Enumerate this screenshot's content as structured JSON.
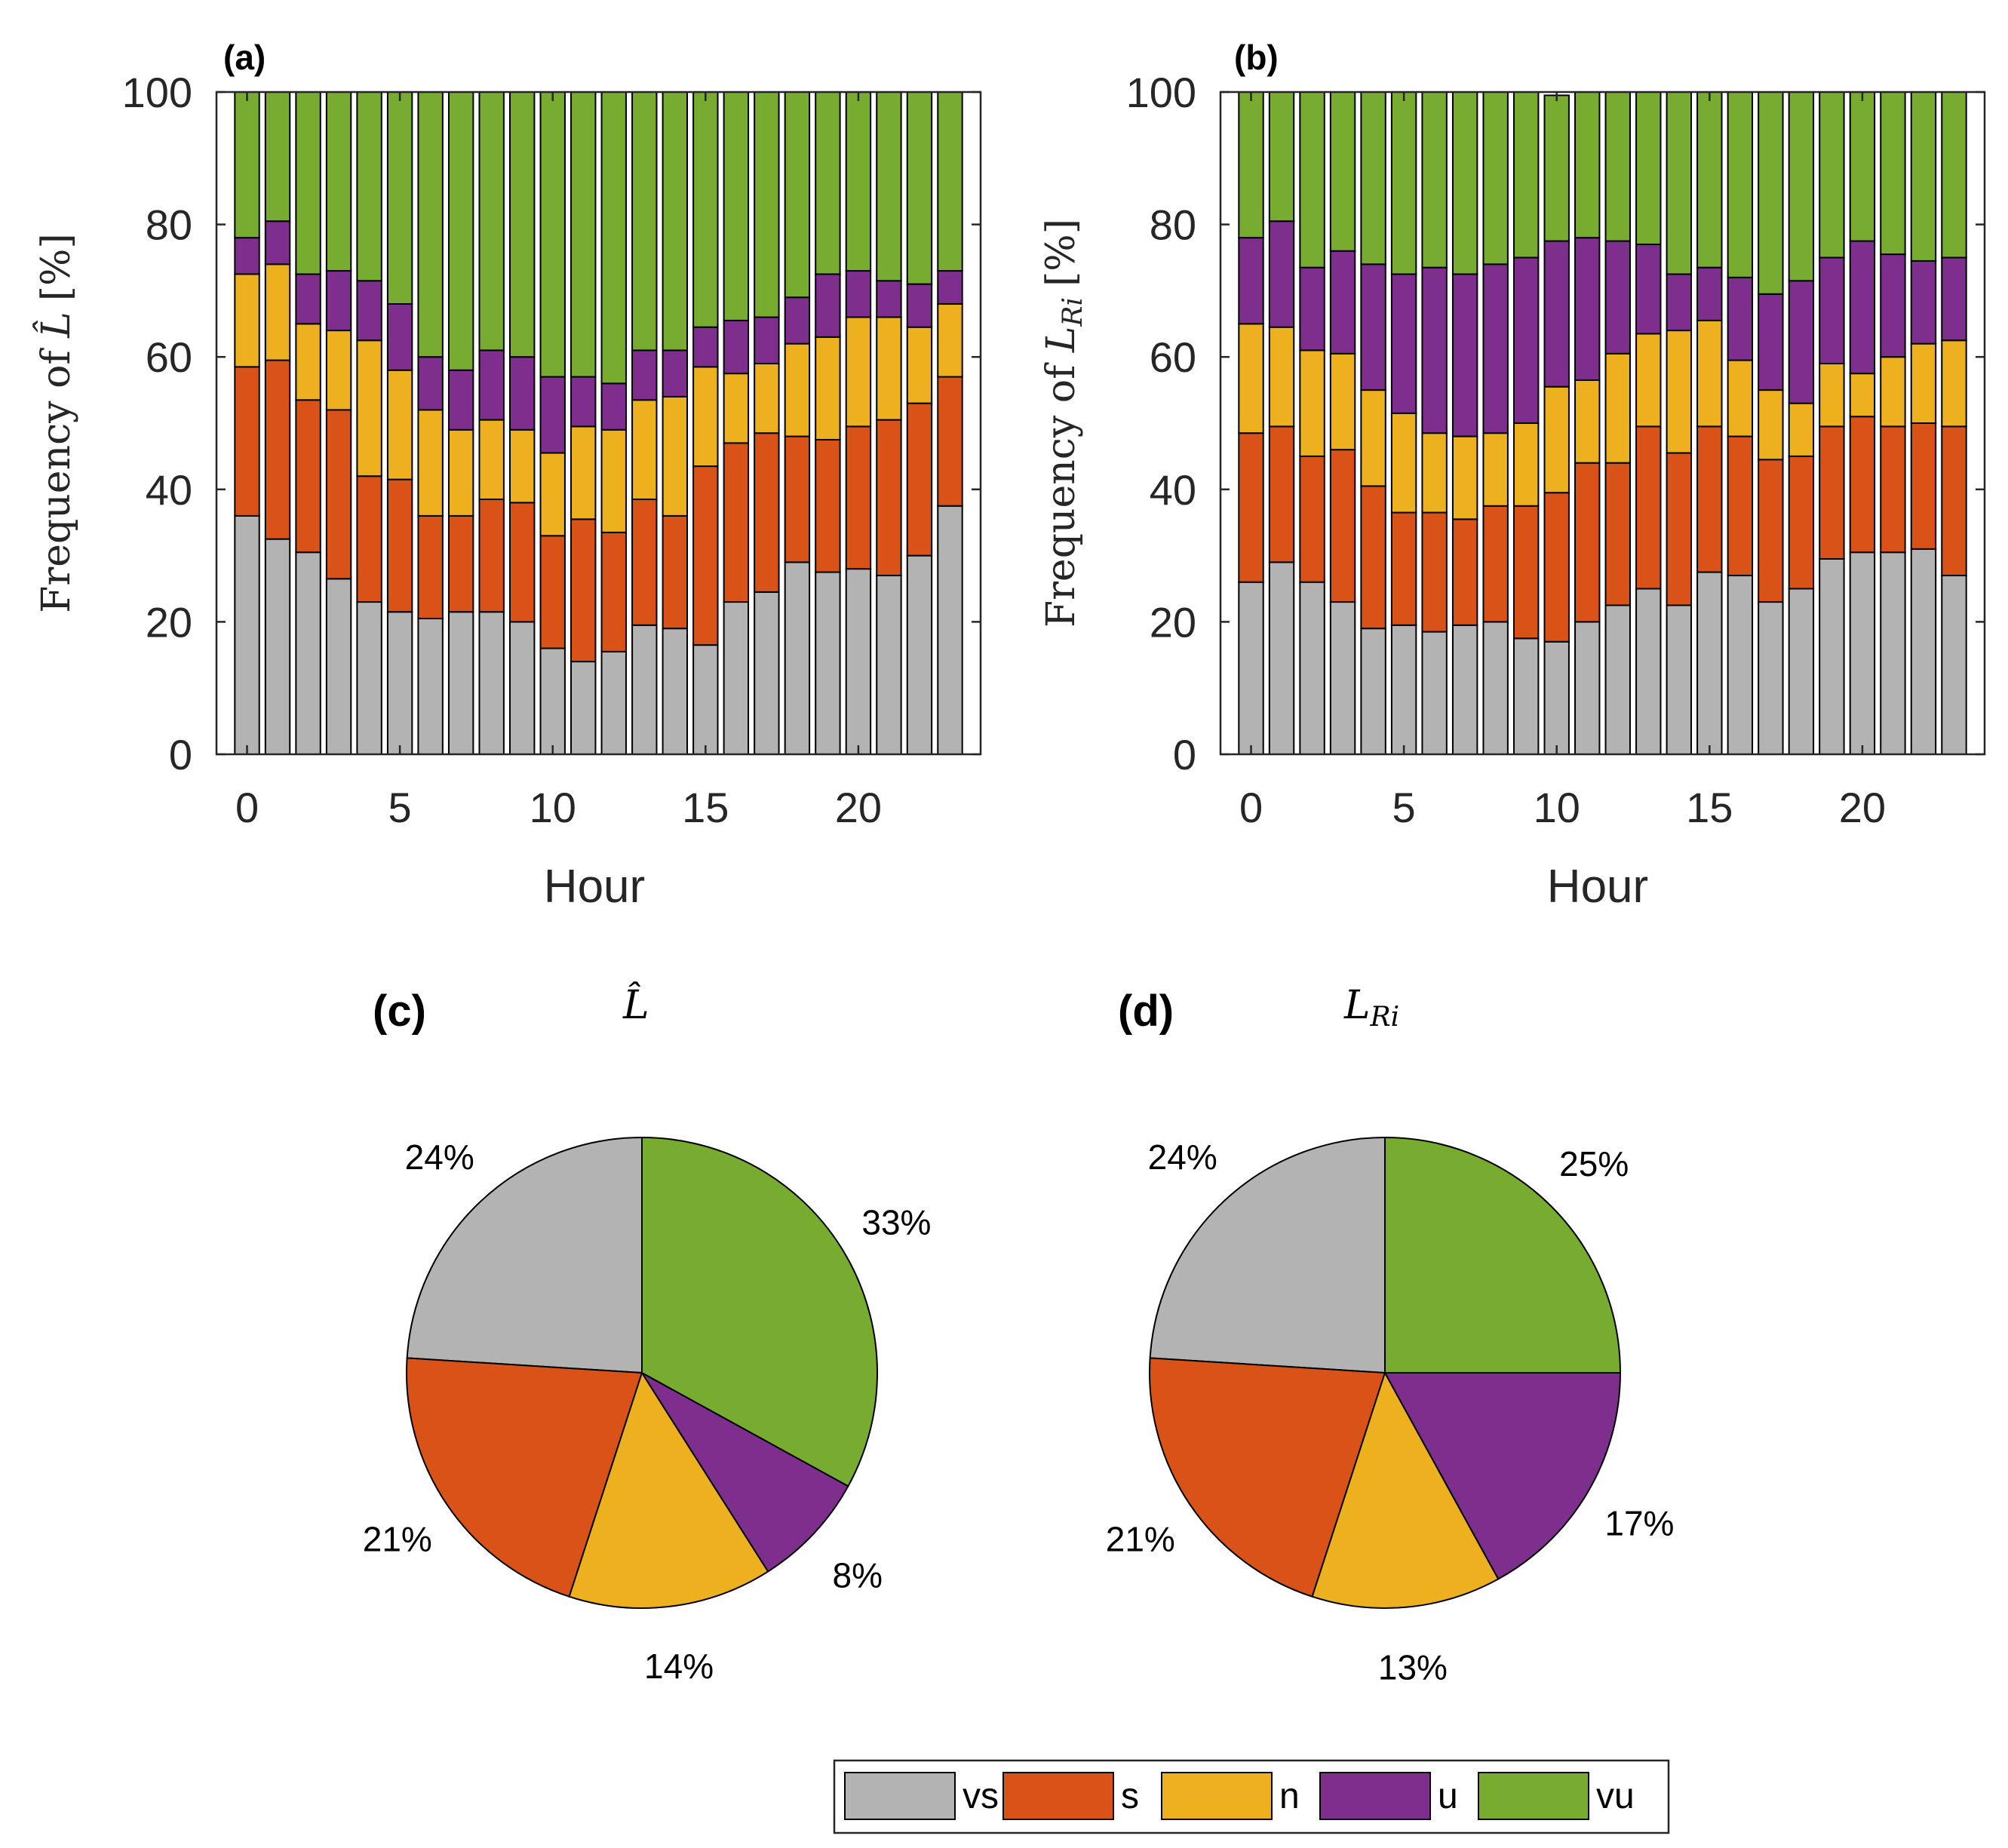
{
  "colors": {
    "vs": "#b3b3b3",
    "s": "#d95319",
    "n": "#edb120",
    "u": "#7e2f8e",
    "vu": "#77ac30",
    "axis": "#262626"
  },
  "legend": {
    "entries": [
      {
        "key": "vs",
        "label": "vs"
      },
      {
        "key": "s",
        "label": "s"
      },
      {
        "key": "n",
        "label": "n"
      },
      {
        "key": "u",
        "label": "u"
      },
      {
        "key": "vu",
        "label": "vu"
      }
    ]
  },
  "chart_data": [
    {
      "id": "a",
      "type": "bar",
      "stacked": true,
      "panel_label": "(a)",
      "ylabel_text": "Frequency of ",
      "ylabel_symbol": "L̂",
      "ylabel_unit": "[%]",
      "xlabel": "Hour",
      "xlim": [
        -1,
        24
      ],
      "ylim": [
        0,
        100
      ],
      "xticks": [
        0,
        5,
        10,
        15,
        20
      ],
      "yticks": [
        0,
        20,
        40,
        60,
        80,
        100
      ],
      "categories": [
        0,
        1,
        2,
        3,
        4,
        5,
        6,
        7,
        8,
        9,
        10,
        11,
        12,
        13,
        14,
        15,
        16,
        17,
        18,
        19,
        20,
        21,
        22,
        23
      ],
      "series": [
        {
          "name": "vs",
          "values": [
            36,
            32.5,
            30.5,
            26.5,
            23,
            21.5,
            20.5,
            21.5,
            21.5,
            20,
            16,
            14,
            15.5,
            19.5,
            19,
            16.5,
            23,
            24.5,
            29,
            27.5,
            28,
            27,
            30,
            37.5
          ]
        },
        {
          "name": "s",
          "values": [
            22.5,
            27,
            23,
            25.5,
            19,
            20,
            15.5,
            14.5,
            17,
            18,
            17,
            21.5,
            18,
            19,
            17,
            27,
            24,
            24,
            19,
            20,
            21.5,
            23.5,
            23,
            19.5
          ]
        },
        {
          "name": "n",
          "values": [
            14,
            14.5,
            11.5,
            12,
            20.5,
            16.5,
            16,
            13,
            12,
            11,
            12.5,
            14,
            15.5,
            15,
            18,
            15,
            10.5,
            10.5,
            14,
            15.5,
            16.5,
            15.5,
            11.5,
            11
          ]
        },
        {
          "name": "u",
          "values": [
            5.5,
            6.5,
            7.5,
            9,
            9,
            10,
            8,
            9,
            10.5,
            11,
            11.5,
            7.5,
            7,
            7.5,
            7,
            6,
            8,
            7,
            7,
            9.5,
            7,
            5.5,
            6.5,
            5
          ]
        },
        {
          "name": "vu",
          "values": [
            22,
            19.5,
            27.5,
            27,
            28.5,
            32,
            40,
            42,
            39,
            40,
            43,
            43,
            44,
            39,
            39,
            35.5,
            34.5,
            34,
            31,
            27.5,
            27,
            28.5,
            29,
            27
          ]
        }
      ]
    },
    {
      "id": "b",
      "type": "bar",
      "stacked": true,
      "panel_label": "(b)",
      "ylabel_text": "Frequency of ",
      "ylabel_symbol": "L",
      "ylabel_subscript": "Ri",
      "ylabel_unit": "[%]",
      "xlabel": "Hour",
      "xlim": [
        -1,
        24
      ],
      "ylim": [
        0,
        100
      ],
      "xticks": [
        0,
        5,
        10,
        15,
        20
      ],
      "yticks": [
        0,
        20,
        40,
        60,
        80,
        100
      ],
      "categories": [
        0,
        1,
        2,
        3,
        4,
        5,
        6,
        7,
        8,
        9,
        10,
        11,
        12,
        13,
        14,
        15,
        16,
        17,
        18,
        19,
        20,
        21,
        22,
        23
      ],
      "series": [
        {
          "name": "vs",
          "values": [
            26,
            29,
            26,
            23,
            19,
            19.5,
            18.5,
            19.5,
            20,
            17.5,
            17,
            20,
            22.5,
            25,
            22.5,
            27.5,
            27,
            23,
            25,
            29.5,
            30.5,
            30.5,
            31,
            27
          ]
        },
        {
          "name": "s",
          "values": [
            22.5,
            20.5,
            19,
            23,
            21.5,
            17,
            18,
            16,
            17.5,
            20,
            22.5,
            24,
            21.5,
            24.5,
            23,
            22,
            21,
            21.5,
            20,
            20,
            20.5,
            19,
            19,
            22.5
          ]
        },
        {
          "name": "n",
          "values": [
            16.5,
            15,
            16,
            14.5,
            14.5,
            15,
            12,
            12.5,
            11,
            12.5,
            16,
            12.5,
            16.5,
            14,
            18.5,
            16,
            11.5,
            10.5,
            8,
            9.5,
            6.5,
            10.5,
            12,
            13
          ]
        },
        {
          "name": "u",
          "values": [
            13,
            16,
            12.5,
            15.5,
            19,
            21,
            25,
            24.5,
            25.5,
            25,
            22,
            21.5,
            17,
            13.5,
            8.5,
            8,
            12.5,
            14.5,
            18.5,
            16,
            20,
            15.5,
            12.5,
            12.5
          ]
        },
        {
          "name": "vu",
          "values": [
            22,
            19.5,
            26.5,
            24,
            26,
            27.5,
            26.5,
            27.5,
            26,
            25,
            22,
            22,
            22.5,
            23,
            27.5,
            26.5,
            28,
            30.5,
            28.5,
            25,
            22.5,
            24.5,
            25.5,
            25
          ]
        }
      ]
    },
    {
      "id": "c",
      "type": "pie",
      "panel_label": "(c)",
      "title_symbol": "L̂",
      "slices": [
        {
          "name": "vs",
          "value": 24,
          "label": "24%"
        },
        {
          "name": "s",
          "value": 21,
          "label": "21%"
        },
        {
          "name": "n",
          "value": 14,
          "label": "14%"
        },
        {
          "name": "u",
          "value": 8,
          "label": "8%"
        },
        {
          "name": "vu",
          "value": 33,
          "label": "33%"
        }
      ]
    },
    {
      "id": "d",
      "type": "pie",
      "panel_label": "(d)",
      "title_symbol": "L",
      "title_subscript": "Ri",
      "slices": [
        {
          "name": "vs",
          "value": 24,
          "label": "24%"
        },
        {
          "name": "s",
          "value": 21,
          "label": "21%"
        },
        {
          "name": "n",
          "value": 13,
          "label": "13%"
        },
        {
          "name": "u",
          "value": 17,
          "label": "17%"
        },
        {
          "name": "vu",
          "value": 25,
          "label": "25%"
        }
      ]
    }
  ]
}
